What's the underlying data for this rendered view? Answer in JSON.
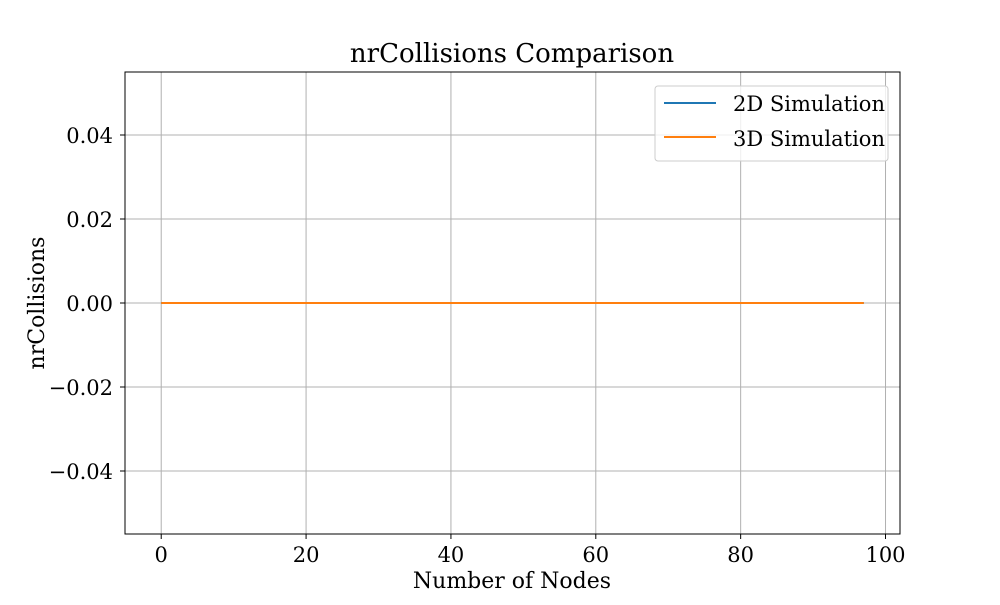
{
  "chart_data": {
    "type": "line",
    "title": "nrCollisions Comparison",
    "xlabel": "Number of Nodes",
    "ylabel": "nrCollisions",
    "xlim": [
      -5,
      102
    ],
    "ylim": [
      -0.055,
      0.055
    ],
    "x_ticks": [
      0,
      20,
      40,
      60,
      80,
      100
    ],
    "x_tick_labels": [
      "0",
      "20",
      "40",
      "60",
      "80",
      "100"
    ],
    "y_ticks": [
      -0.04,
      -0.02,
      0.0,
      0.02,
      0.04
    ],
    "y_tick_labels": [
      "−0.04",
      "−0.02",
      "0.00",
      "0.02",
      "0.04"
    ],
    "grid": true,
    "legend_position": "top-right",
    "series": [
      {
        "name": "2D Simulation",
        "color": "#1f77b4",
        "x": [
          0,
          97
        ],
        "y": [
          0,
          0
        ]
      },
      {
        "name": "3D Simulation",
        "color": "#ff7f0e",
        "x": [
          0,
          97
        ],
        "y": [
          0,
          0
        ]
      }
    ]
  }
}
